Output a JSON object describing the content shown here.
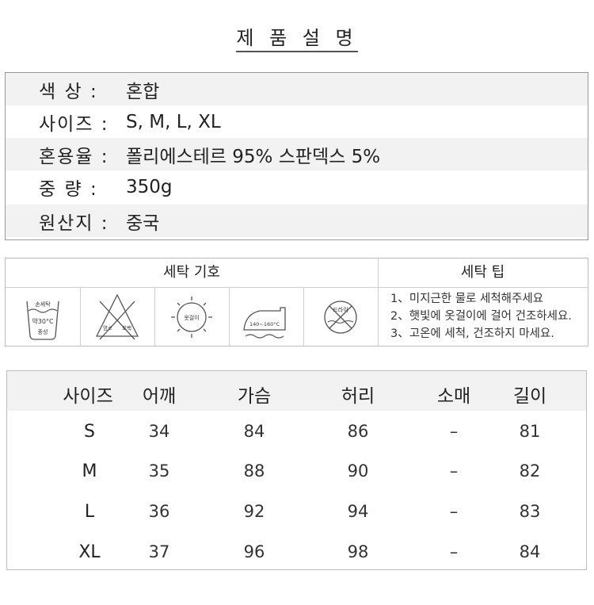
{
  "title": "제 품 설 명",
  "product_info": [
    {
      "label": "색  상 :",
      "value": "혼합"
    },
    {
      "label": "사이즈 :",
      "value": "S, M, L, XL"
    },
    {
      "label": "혼용율 :",
      "value": "폴리에스테르 95% 스판덱스 5%"
    },
    {
      "label": "중  량 :",
      "value": "350g"
    },
    {
      "label": "원산지 :",
      "value": "중국"
    }
  ],
  "laundry": {
    "symbols_header": "세탁 기호",
    "tips_header": "세탁 팁",
    "symbols": [
      {
        "icon": "hand-wash-30-icon",
        "text_top": "손세탁",
        "text_mid": "약30°C",
        "text_bottom": "중성"
      },
      {
        "icon": "no-bleach-icon",
        "text_left": "염소",
        "text_right": "표백"
      },
      {
        "icon": "sun-dry-icon",
        "text": "옷걸이"
      },
      {
        "icon": "iron-icon",
        "text": "140~160°C"
      },
      {
        "icon": "no-tumble-dry-icon",
        "text": "드라이"
      }
    ],
    "tips": [
      "1、미지근한 물로 세척해주세요",
      "2、햇빛에 옷걸이에 걸어 건조하세요.",
      "3、고온에 세척, 건조하지 마세요."
    ]
  },
  "size_table": {
    "headers": [
      "사이즈",
      "어깨",
      "가슴",
      "허리",
      "소매",
      "길이"
    ],
    "rows": [
      [
        "S",
        "34",
        "84",
        "86",
        "–",
        "81"
      ],
      [
        "M",
        "35",
        "88",
        "90",
        "–",
        "82"
      ],
      [
        "L",
        "36",
        "92",
        "94",
        "–",
        "83"
      ],
      [
        "XL",
        "37",
        "96",
        "98",
        "–",
        "84"
      ]
    ]
  }
}
